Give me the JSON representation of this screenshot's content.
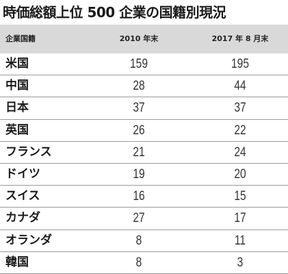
{
  "title": "時価総額上位 500 企業の国籍別現況",
  "table": {
    "headers": {
      "country": "企業国籍",
      "y2010": "2010 年末",
      "y2017": "2017 年 8 月末"
    },
    "rows": [
      {
        "country": "米国",
        "y2010": "159",
        "y2017": "195"
      },
      {
        "country": "中国",
        "y2010": "28",
        "y2017": "44"
      },
      {
        "country": "日本",
        "y2010": "37",
        "y2017": "37"
      },
      {
        "country": "英国",
        "y2010": "26",
        "y2017": "22"
      },
      {
        "country": "フランス",
        "y2010": "21",
        "y2017": "24"
      },
      {
        "country": "ドイツ",
        "y2010": "19",
        "y2017": "20"
      },
      {
        "country": "スイス",
        "y2010": "16",
        "y2017": "15"
      },
      {
        "country": "カナダ",
        "y2010": "27",
        "y2017": "17"
      },
      {
        "country": "オランダ",
        "y2010": "8",
        "y2017": "11"
      },
      {
        "country": "韓国",
        "y2010": "8",
        "y2017": "3"
      }
    ]
  }
}
